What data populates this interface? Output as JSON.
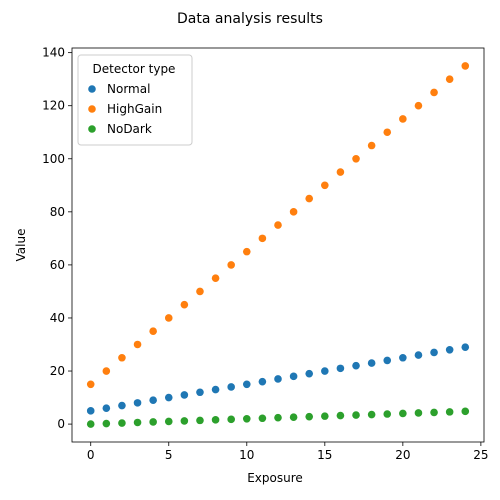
{
  "chart_data": {
    "type": "scatter",
    "title": "Data analysis results",
    "xlabel": "Exposure",
    "ylabel": "Value",
    "xlim": [
      -1.2,
      25.2
    ],
    "ylim": [
      -6.75,
      141.75
    ],
    "x_ticks": [
      0,
      5,
      10,
      15,
      20,
      25
    ],
    "y_ticks": [
      0,
      20,
      40,
      60,
      80,
      100,
      120,
      140
    ],
    "grid": false,
    "legend": {
      "title": "Detector type",
      "placement": "top-left"
    },
    "x": [
      0,
      1,
      2,
      3,
      4,
      5,
      6,
      7,
      8,
      9,
      10,
      11,
      12,
      13,
      14,
      15,
      16,
      17,
      18,
      19,
      20,
      21,
      22,
      23,
      24
    ],
    "series": [
      {
        "name": "Normal",
        "color": "#1f77b4",
        "values": [
          5,
          6,
          7,
          8,
          9,
          10,
          11,
          12,
          13,
          14,
          15,
          16,
          17,
          18,
          19,
          20,
          21,
          22,
          23,
          24,
          25,
          26,
          27,
          28,
          29
        ]
      },
      {
        "name": "HighGain",
        "color": "#ff7f0e",
        "values": [
          15,
          20,
          25,
          30,
          35,
          40,
          45,
          50,
          55,
          60,
          65,
          70,
          75,
          80,
          85,
          90,
          95,
          100,
          105,
          110,
          115,
          120,
          125,
          130,
          135
        ]
      },
      {
        "name": "NoDark",
        "color": "#2ca02c",
        "values": [
          0,
          0.2,
          0.4,
          0.6,
          0.8,
          1,
          1.2,
          1.4,
          1.6,
          1.8,
          2,
          2.2,
          2.4,
          2.6,
          2.8,
          3,
          3.2,
          3.4,
          3.6,
          3.8,
          4,
          4.2,
          4.4,
          4.6,
          4.8
        ]
      }
    ]
  }
}
